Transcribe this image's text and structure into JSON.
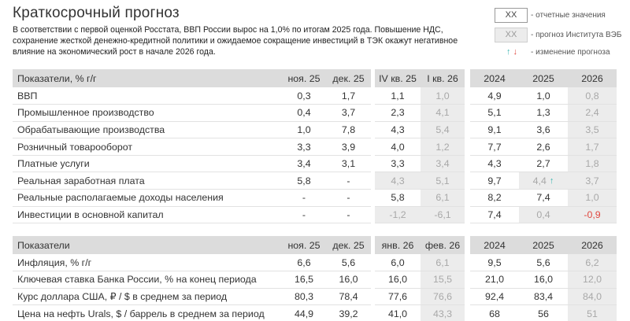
{
  "title": "Краткосрочный прогноз",
  "intro": "В соответствии с первой оценкой Росстата, ВВП России вырос на 1,0% по итогам 2025 года. Повышение НДС, сохранение жесткой денежно-кредитной политики и ожидаемое сокращение инвестиций в ТЭК окажут негативное влияние на экономический рост в начале 2026 года.",
  "legend": {
    "reported_box": "XX",
    "reported_label": "- отчетные значения",
    "forecast_box": "XX",
    "forecast_label": "- прогноз Института ВЭБ",
    "arrow_up": "↑",
    "arrow_down": "↓",
    "change_label": "- изменение прогноза"
  },
  "colors": {
    "forecast_bg": "#ececec",
    "header_bg": "#dcdcdc",
    "negative": "#e0473f",
    "arrow_up": "#3bb6b2"
  },
  "table1": {
    "headers": [
      "Показатели, % г/г",
      "ноя. 25",
      "дек. 25",
      "IV кв. 25",
      "I кв. 26",
      "2024",
      "2025",
      "2026"
    ],
    "rows": [
      {
        "label": "ВВП",
        "cells": [
          "0,3",
          "1,7",
          "1,1",
          "1,0",
          "4,9",
          "1,0",
          "0,8"
        ]
      },
      {
        "label": "Промышленное производство",
        "cells": [
          "0,4",
          "3,7",
          "2,3",
          "4,1",
          "5,1",
          "1,3",
          "2,4"
        ]
      },
      {
        "label": "Обрабатывающие производства",
        "cells": [
          "1,0",
          "7,8",
          "4,3",
          "5,4",
          "9,1",
          "3,6",
          "3,5"
        ]
      },
      {
        "label": "Розничный товарооборот",
        "cells": [
          "3,3",
          "3,9",
          "4,0",
          "1,2",
          "7,7",
          "2,6",
          "1,7"
        ]
      },
      {
        "label": "Платные услуги",
        "cells": [
          "3,4",
          "3,1",
          "3,3",
          "3,4",
          "4,3",
          "2,7",
          "1,8"
        ]
      },
      {
        "label": "Реальная заработная плата",
        "cells": [
          "5,8",
          "-",
          "4,3",
          "5,1",
          "9,7",
          "4,4",
          "3,7"
        ]
      },
      {
        "label": "Реальные располагаемые доходы населения",
        "cells": [
          "-",
          "-",
          "5,8",
          "6,1",
          "8,2",
          "7,4",
          "1,0"
        ]
      },
      {
        "label": "Инвестиции в основной капитал",
        "cells": [
          "-",
          "-",
          "-1,2",
          "-6,1",
          "7,4",
          "0,4",
          "-0,9"
        ]
      }
    ]
  },
  "table2": {
    "headers": [
      "Показатели",
      "ноя. 25",
      "дек. 25",
      "янв. 26",
      "фев. 26",
      "2024",
      "2025",
      "2026"
    ],
    "rows": [
      {
        "label": "Инфляция, % г/г",
        "cells": [
          "6,6",
          "5,6",
          "6,0",
          "6,1",
          "9,5",
          "5,6",
          "6,2"
        ]
      },
      {
        "label": "Ключевая ставка Банка России, % на конец периода",
        "cells": [
          "16,5",
          "16,0",
          "16,0",
          "15,5",
          "21,0",
          "16,0",
          "12,0"
        ]
      },
      {
        "label": "Курс доллара США, ₽ / $ в среднем за период",
        "cells": [
          "80,3",
          "78,4",
          "77,6",
          "76,6",
          "92,4",
          "83,4",
          "84,0"
        ]
      },
      {
        "label": "Цена на нефть Urals, $ / баррель в среднем за период",
        "cells": [
          "44,9",
          "39,2",
          "41,0",
          "43,3",
          "68",
          "56",
          "51"
        ]
      }
    ]
  }
}
